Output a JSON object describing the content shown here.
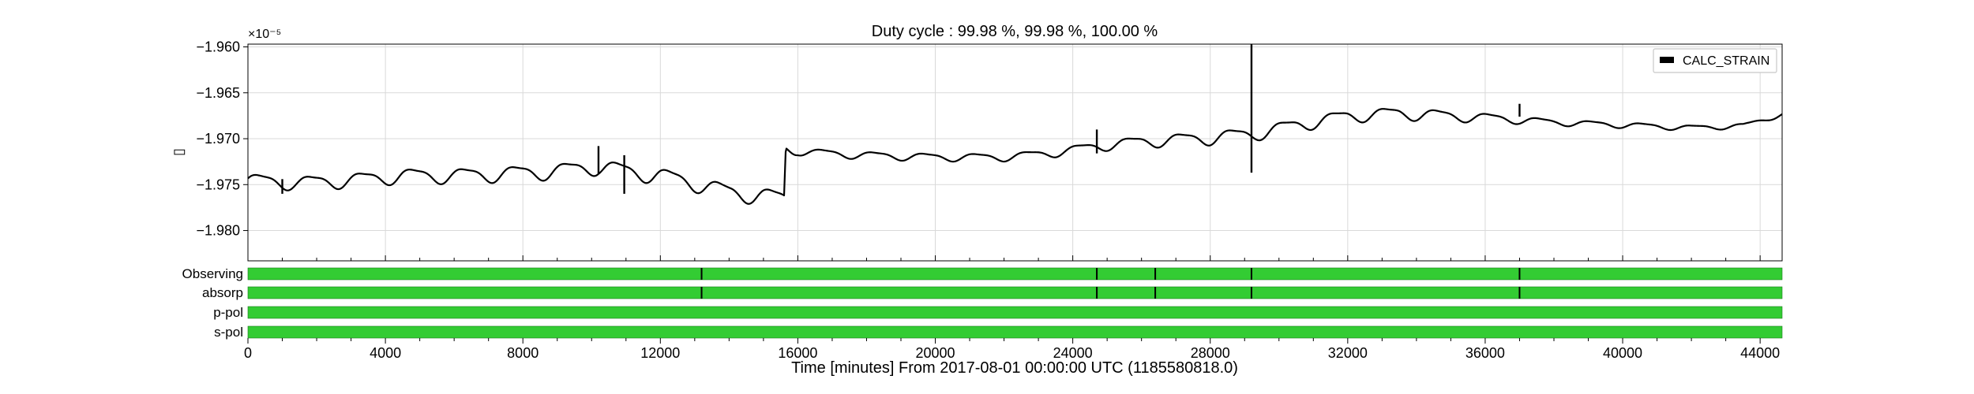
{
  "chart_data": [
    {
      "type": "line",
      "title": "Duty cycle : 99.98 %, 99.98 %, 100.00 %",
      "ylabel": "▯",
      "scale_label": "×10⁻⁵",
      "legend": {
        "entries": [
          "CALC_STRAIN"
        ],
        "placement": "top-right"
      },
      "grid": true,
      "xlim": [
        0,
        44640
      ],
      "ylim": [
        -1.9833,
        -1.9597
      ],
      "yticks": [
        -1.96,
        -1.965,
        -1.97,
        -1.975,
        -1.98
      ],
      "ytick_labels": [
        "−1.960",
        "−1.965",
        "−1.970",
        "−1.975",
        "−1.980"
      ],
      "baseline_points": [
        {
          "x": 0,
          "y": -1.9745
        },
        {
          "x": 1500,
          "y": -1.9748
        },
        {
          "x": 3000,
          "y": -1.9745
        },
        {
          "x": 4500,
          "y": -1.974
        },
        {
          "x": 6000,
          "y": -1.974
        },
        {
          "x": 7500,
          "y": -1.9738
        },
        {
          "x": 9000,
          "y": -1.9735
        },
        {
          "x": 10200,
          "y": -1.973
        },
        {
          "x": 11000,
          "y": -1.9735
        },
        {
          "x": 12000,
          "y": -1.974
        },
        {
          "x": 13000,
          "y": -1.9748
        },
        {
          "x": 14000,
          "y": -1.9758
        },
        {
          "x": 15000,
          "y": -1.9762
        },
        {
          "x": 15600,
          "y": -1.9765
        },
        {
          "x": 15650,
          "y": -1.9712
        },
        {
          "x": 16500,
          "y": -1.9715
        },
        {
          "x": 18000,
          "y": -1.9718
        },
        {
          "x": 20000,
          "y": -1.972
        },
        {
          "x": 22000,
          "y": -1.972
        },
        {
          "x": 23500,
          "y": -1.9715
        },
        {
          "x": 24700,
          "y": -1.9708
        },
        {
          "x": 26000,
          "y": -1.9703
        },
        {
          "x": 27500,
          "y": -1.97
        },
        {
          "x": 29200,
          "y": -1.9695
        },
        {
          "x": 30500,
          "y": -1.9685
        },
        {
          "x": 32000,
          "y": -1.9675
        },
        {
          "x": 33500,
          "y": -1.9672
        },
        {
          "x": 35000,
          "y": -1.9675
        },
        {
          "x": 36500,
          "y": -1.9678
        },
        {
          "x": 38000,
          "y": -1.9682
        },
        {
          "x": 40000,
          "y": -1.9685
        },
        {
          "x": 42000,
          "y": -1.9688
        },
        {
          "x": 43500,
          "y": -1.9686
        },
        {
          "x": 44640,
          "y": -1.9673
        }
      ],
      "oscillation_amplitude": [
        {
          "x": 0,
          "a": 0.0009
        },
        {
          "x": 15600,
          "a": 0.0011
        },
        {
          "x": 16000,
          "a": 0.0005
        },
        {
          "x": 23000,
          "a": 0.0005
        },
        {
          "x": 28000,
          "a": 0.0009
        },
        {
          "x": 34000,
          "a": 0.0008
        },
        {
          "x": 38000,
          "a": 0.0004
        },
        {
          "x": 44640,
          "a": 0.0003
        }
      ],
      "oscillation_period_minutes": 1490,
      "spikes": [
        {
          "x": 1000,
          "low": -1.976,
          "high": -1.9744
        },
        {
          "x": 10200,
          "low": -1.9738,
          "high": -1.9708
        },
        {
          "x": 10950,
          "low": -1.976,
          "high": -1.9718
        },
        {
          "x": 24700,
          "low": -1.9716,
          "high": -1.969
        },
        {
          "x": 29200,
          "low": -1.9737,
          "high": -1.9597
        },
        {
          "x": 37000,
          "low": -1.9676,
          "high": -1.9662
        }
      ]
    },
    {
      "type": "segments",
      "xlabel": "Time [minutes] From 2017-08-01 00:00:00 UTC (1185580818.0)",
      "xlim": [
        0,
        44640
      ],
      "xticks": [
        0,
        4000,
        8000,
        12000,
        16000,
        20000,
        24000,
        28000,
        32000,
        36000,
        40000,
        44000
      ],
      "xtick_labels": [
        "0",
        "4000",
        "8000",
        "12000",
        "16000",
        "20000",
        "24000",
        "28000",
        "32000",
        "36000",
        "40000",
        "44000"
      ],
      "active_color": "#33cc33",
      "rows": [
        {
          "label": "Observing",
          "gaps": [
            13200,
            24700,
            26400,
            29200,
            37000
          ]
        },
        {
          "label": "absorp",
          "gaps": [
            13200,
            24700,
            26400,
            29200,
            37000
          ]
        },
        {
          "label": "p-pol",
          "gaps": []
        },
        {
          "label": "s-pol",
          "gaps": []
        }
      ]
    }
  ]
}
